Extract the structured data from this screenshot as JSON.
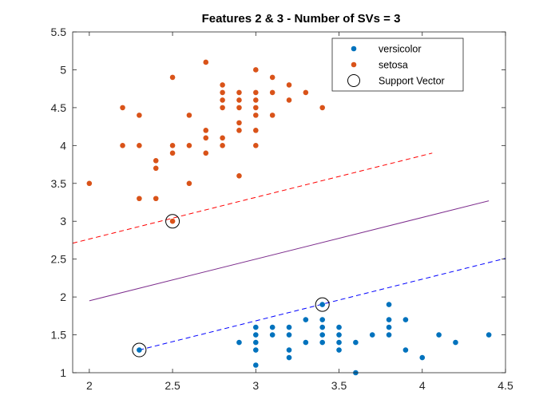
{
  "chart_data": {
    "type": "scatter",
    "title": "Features 2 & 3 - Number of SVs = 3",
    "xlabel": "",
    "ylabel": "",
    "xlim": [
      1.9,
      4.5
    ],
    "ylim": [
      1,
      5.5
    ],
    "xticks": [
      2,
      2.5,
      3,
      3.5,
      4,
      4.5
    ],
    "xtick_labels": [
      "2",
      "2.5",
      "3",
      "3.5",
      "4",
      "4.5"
    ],
    "yticks": [
      1,
      1.5,
      2,
      2.5,
      3,
      3.5,
      4,
      4.5,
      5,
      5.5
    ],
    "ytick_labels": [
      "1",
      "1.5",
      "2",
      "2.5",
      "3",
      "3.5",
      "4",
      "4.5",
      "5",
      "5.5"
    ],
    "grid": false,
    "legend_position": "top-right",
    "series": [
      {
        "name": "versicolor",
        "color": "#0072BD",
        "marker": "dot",
        "points": [
          [
            2.3,
            1.3
          ],
          [
            2.9,
            1.4
          ],
          [
            3.0,
            1.1
          ],
          [
            3.0,
            1.3
          ],
          [
            3.0,
            1.4
          ],
          [
            3.0,
            1.5
          ],
          [
            3.0,
            1.6
          ],
          [
            3.1,
            1.5
          ],
          [
            3.1,
            1.6
          ],
          [
            3.2,
            1.2
          ],
          [
            3.2,
            1.3
          ],
          [
            3.2,
            1.5
          ],
          [
            3.2,
            1.6
          ],
          [
            3.3,
            1.4
          ],
          [
            3.3,
            1.7
          ],
          [
            3.4,
            1.4
          ],
          [
            3.4,
            1.5
          ],
          [
            3.4,
            1.6
          ],
          [
            3.4,
            1.7
          ],
          [
            3.4,
            1.9
          ],
          [
            3.5,
            1.3
          ],
          [
            3.5,
            1.4
          ],
          [
            3.5,
            1.5
          ],
          [
            3.5,
            1.6
          ],
          [
            3.6,
            1.0
          ],
          [
            3.6,
            1.4
          ],
          [
            3.7,
            1.5
          ],
          [
            3.8,
            1.5
          ],
          [
            3.8,
            1.6
          ],
          [
            3.8,
            1.7
          ],
          [
            3.8,
            1.9
          ],
          [
            3.9,
            1.3
          ],
          [
            3.9,
            1.7
          ],
          [
            4.0,
            1.2
          ],
          [
            4.1,
            1.5
          ],
          [
            4.2,
            1.4
          ],
          [
            4.4,
            1.5
          ]
        ]
      },
      {
        "name": "setosa",
        "color": "#D95319",
        "marker": "dot",
        "points": [
          [
            2.0,
            3.5
          ],
          [
            2.2,
            4.0
          ],
          [
            2.2,
            4.5
          ],
          [
            2.3,
            3.3
          ],
          [
            2.3,
            4.0
          ],
          [
            2.3,
            4.4
          ],
          [
            2.4,
            3.3
          ],
          [
            2.4,
            3.7
          ],
          [
            2.4,
            3.8
          ],
          [
            2.5,
            3.0
          ],
          [
            2.5,
            3.9
          ],
          [
            2.5,
            4.0
          ],
          [
            2.5,
            4.9
          ],
          [
            2.6,
            3.5
          ],
          [
            2.6,
            4.0
          ],
          [
            2.6,
            4.4
          ],
          [
            2.7,
            3.9
          ],
          [
            2.7,
            4.1
          ],
          [
            2.7,
            4.2
          ],
          [
            2.7,
            5.1
          ],
          [
            2.8,
            4.0
          ],
          [
            2.8,
            4.1
          ],
          [
            2.8,
            4.5
          ],
          [
            2.8,
            4.6
          ],
          [
            2.8,
            4.7
          ],
          [
            2.8,
            4.8
          ],
          [
            2.9,
            3.6
          ],
          [
            2.9,
            4.2
          ],
          [
            2.9,
            4.3
          ],
          [
            2.9,
            4.5
          ],
          [
            2.9,
            4.6
          ],
          [
            2.9,
            4.7
          ],
          [
            3.0,
            4.0
          ],
          [
            3.0,
            4.2
          ],
          [
            3.0,
            4.4
          ],
          [
            3.0,
            4.5
          ],
          [
            3.0,
            4.6
          ],
          [
            3.0,
            4.7
          ],
          [
            3.0,
            5.0
          ],
          [
            3.1,
            4.4
          ],
          [
            3.1,
            4.7
          ],
          [
            3.1,
            4.9
          ],
          [
            3.2,
            4.6
          ],
          [
            3.2,
            4.8
          ],
          [
            3.3,
            4.7
          ],
          [
            3.4,
            4.5
          ]
        ]
      }
    ],
    "support_vectors": {
      "name": "Support Vector",
      "color": "#000000",
      "marker": "open-circle",
      "points": [
        [
          2.3,
          1.3
        ],
        [
          2.5,
          3.0
        ],
        [
          3.4,
          1.9
        ]
      ]
    },
    "lines": [
      {
        "name": "upper-margin",
        "color": "#FF0000",
        "style": "dashed",
        "points": [
          [
            1.9,
            2.71
          ],
          [
            4.06,
            3.9
          ]
        ]
      },
      {
        "name": "decision-boundary",
        "color": "#7E2F8E",
        "style": "solid",
        "points": [
          [
            2.0,
            1.95
          ],
          [
            4.4,
            3.27
          ]
        ]
      },
      {
        "name": "lower-margin",
        "color": "#0000FF",
        "style": "dashed",
        "points": [
          [
            2.3,
            1.3
          ],
          [
            4.5,
            2.51
          ]
        ]
      }
    ]
  }
}
